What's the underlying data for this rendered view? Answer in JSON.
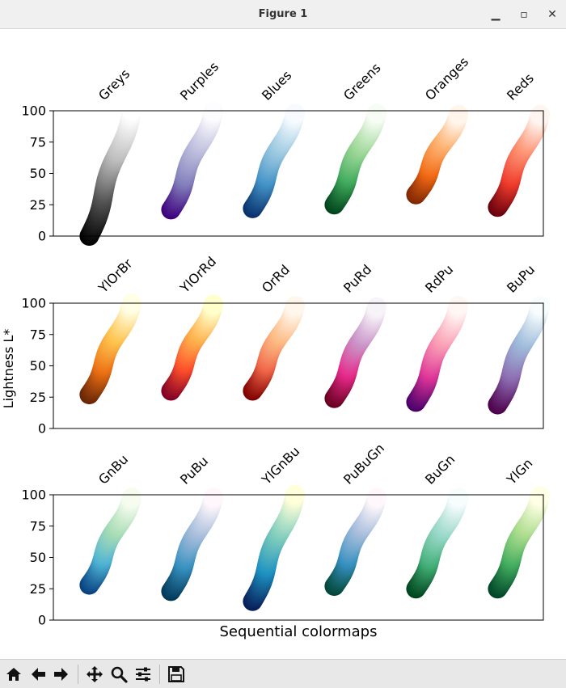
{
  "window": {
    "title": "Figure 1",
    "minimize_glyph": "▁",
    "maximize_glyph": "▫",
    "close_glyph": "✕"
  },
  "toolbar": {
    "buttons": [
      {
        "name": "home-icon"
      },
      {
        "name": "back-arrow-icon"
      },
      {
        "name": "forward-arrow-icon"
      },
      {
        "name": "pan-move-icon"
      },
      {
        "name": "zoom-magnifier-icon"
      },
      {
        "name": "configure-subplots-icon"
      },
      {
        "name": "save-floppy-icon"
      }
    ]
  },
  "chart_data": {
    "type": "scatter",
    "xlabel": "Sequential colormaps",
    "ylabel": "Lightness L*",
    "ylim": [
      0,
      100
    ],
    "yticks": [
      0,
      25,
      50,
      75,
      100
    ],
    "grid": false,
    "panels": [
      {
        "series": [
          {
            "name": "Greys",
            "colors": [
              "#ffffff",
              "#bdbdbd",
              "#525252",
              "#000000"
            ],
            "lightness": [
              100,
              0
            ]
          },
          {
            "name": "Purples",
            "colors": [
              "#fcfbfd",
              "#bcbddc",
              "#807dba",
              "#3f007d"
            ],
            "lightness": [
              99,
              21
            ]
          },
          {
            "name": "Blues",
            "colors": [
              "#f7fbff",
              "#9ecae1",
              "#4292c6",
              "#08306b"
            ],
            "lightness": [
              98,
              22
            ]
          },
          {
            "name": "Greens",
            "colors": [
              "#f7fcf5",
              "#a1d99b",
              "#41ab5d",
              "#00441b"
            ],
            "lightness": [
              98,
              25
            ]
          },
          {
            "name": "Oranges",
            "colors": [
              "#fff5eb",
              "#fdae6b",
              "#f16913",
              "#7f2704"
            ],
            "lightness": [
              97,
              33
            ]
          },
          {
            "name": "Reds",
            "colors": [
              "#fff5f0",
              "#fc9272",
              "#ef3b2c",
              "#67000d"
            ],
            "lightness": [
              97,
              23
            ]
          }
        ]
      },
      {
        "series": [
          {
            "name": "YlOrBr",
            "colors": [
              "#ffffe5",
              "#fec44f",
              "#ec7014",
              "#662506"
            ],
            "lightness": [
              100,
              27
            ]
          },
          {
            "name": "YlOrRd",
            "colors": [
              "#ffffcc",
              "#feb24c",
              "#fc4e2a",
              "#800026"
            ],
            "lightness": [
              99,
              30
            ]
          },
          {
            "name": "OrRd",
            "colors": [
              "#fff7ec",
              "#fdbb84",
              "#ef6548",
              "#7f0000"
            ],
            "lightness": [
              98,
              30
            ]
          },
          {
            "name": "PuRd",
            "colors": [
              "#f7f4f9",
              "#c994c7",
              "#e7298a",
              "#67001f"
            ],
            "lightness": [
              97,
              24
            ]
          },
          {
            "name": "RdPu",
            "colors": [
              "#fff7f3",
              "#fa9fb5",
              "#dd3497",
              "#49006a"
            ],
            "lightness": [
              98,
              21
            ]
          },
          {
            "name": "BuPu",
            "colors": [
              "#f7fcfd",
              "#9ebcda",
              "#8c6bb1",
              "#4d004b"
            ],
            "lightness": [
              98,
              19
            ]
          }
        ]
      },
      {
        "series": [
          {
            "name": "GnBu",
            "colors": [
              "#f7fcf0",
              "#a8ddb5",
              "#4eb3d3",
              "#084081"
            ],
            "lightness": [
              98,
              28
            ]
          },
          {
            "name": "PuBu",
            "colors": [
              "#fff7fb",
              "#a6bddb",
              "#3690c0",
              "#023858"
            ],
            "lightness": [
              98,
              23
            ]
          },
          {
            "name": "YlGnBu",
            "colors": [
              "#ffffd9",
              "#7fcdbb",
              "#1d91c0",
              "#081d58"
            ],
            "lightness": [
              100,
              15
            ]
          },
          {
            "name": "PuBuGn",
            "colors": [
              "#fff7fb",
              "#a6bddb",
              "#3690c0",
              "#014636"
            ],
            "lightness": [
              98,
              27
            ]
          },
          {
            "name": "BuGn",
            "colors": [
              "#f7fcfd",
              "#99d8c9",
              "#41ae76",
              "#00441b"
            ],
            "lightness": [
              98,
              25
            ]
          },
          {
            "name": "YlGn",
            "colors": [
              "#ffffe5",
              "#addd8e",
              "#41ab5d",
              "#004529"
            ],
            "lightness": [
              99,
              25
            ]
          }
        ]
      }
    ]
  }
}
